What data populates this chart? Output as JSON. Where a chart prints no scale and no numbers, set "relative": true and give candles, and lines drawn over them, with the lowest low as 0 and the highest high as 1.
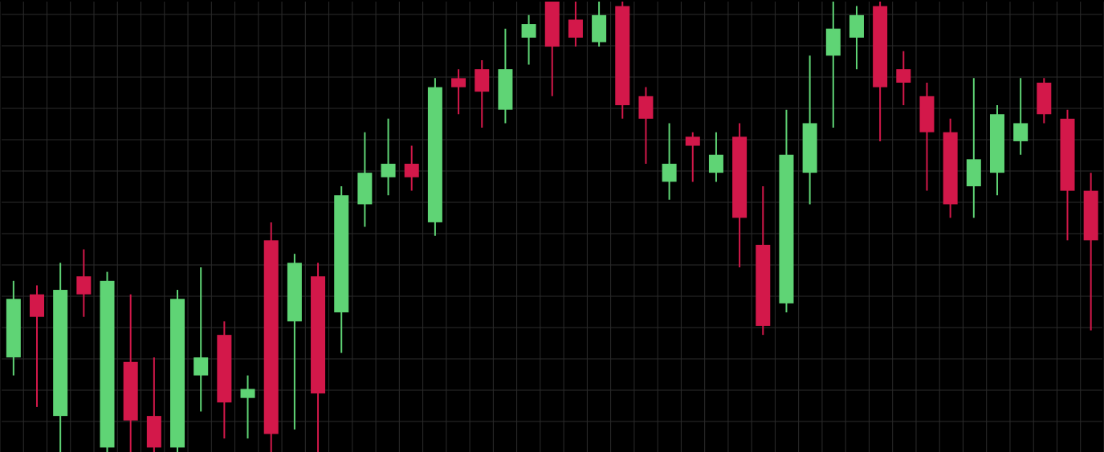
{
  "chart_data": {
    "type": "candlestick",
    "relative": true,
    "grid": true,
    "categories": [
      null,
      null,
      null,
      null,
      null,
      null,
      null,
      null,
      null,
      null,
      null,
      null,
      null,
      null,
      null,
      null,
      null,
      null,
      null,
      null,
      null,
      null,
      null,
      null,
      null,
      null,
      null,
      null,
      null,
      null,
      null,
      null,
      null,
      null,
      null,
      null,
      null,
      null,
      null,
      null,
      null,
      null,
      null,
      null,
      null,
      null,
      null
    ],
    "ohlc": [
      [
        0.21,
        0.38,
        0.17,
        0.34
      ],
      [
        0.35,
        0.37,
        0.1,
        0.3
      ],
      [
        0.08,
        0.42,
        0,
        0.36
      ],
      [
        0.39,
        0.45,
        0.3,
        0.35
      ],
      [
        0.01,
        0.4,
        0,
        0.38
      ],
      [
        0.2,
        0.35,
        0,
        0.07
      ],
      [
        0.08,
        0.21,
        0,
        0.01
      ],
      [
        0.01,
        0.36,
        0,
        0.34
      ],
      [
        0.17,
        0.41,
        0.09,
        0.21
      ],
      [
        0.26,
        0.29,
        0.03,
        0.11
      ],
      [
        0.12,
        0.17,
        0.03,
        0.14
      ],
      [
        0.47,
        0.51,
        0,
        0.04
      ],
      [
        0.29,
        0.44,
        0.05,
        0.42
      ],
      [
        0.39,
        0.42,
        0,
        0.13
      ],
      [
        0.31,
        0.59,
        0.22,
        0.57
      ],
      [
        0.55,
        0.71,
        0.5,
        0.62
      ],
      [
        0.61,
        0.74,
        0.57,
        0.64
      ],
      [
        0.64,
        0.68,
        0.58,
        0.61
      ],
      [
        0.51,
        0.83,
        0.48,
        0.81
      ],
      [
        0.83,
        0.85,
        0.75,
        0.81
      ],
      [
        0.85,
        0.87,
        0.72,
        0.8
      ],
      [
        0.76,
        0.94,
        0.73,
        0.85
      ],
      [
        0.92,
        0.97,
        0.86,
        0.95
      ],
      [
        1,
        1,
        0.79,
        0.9
      ],
      [
        0.96,
        1,
        0.9,
        0.92
      ],
      [
        0.91,
        1,
        0.9,
        0.97
      ],
      [
        0.99,
        1,
        0.74,
        0.77
      ],
      [
        0.79,
        0.81,
        0.64,
        0.74
      ],
      [
        0.6,
        0.73,
        0.56,
        0.64
      ],
      [
        0.7,
        0.71,
        0.6,
        0.68
      ],
      [
        0.62,
        0.71,
        0.6,
        0.66
      ],
      [
        0.7,
        0.73,
        0.41,
        0.52
      ],
      [
        0.46,
        0.59,
        0.26,
        0.28
      ],
      [
        0.33,
        0.76,
        0.31,
        0.66
      ],
      [
        0.62,
        0.88,
        0.55,
        0.73
      ],
      [
        0.88,
        1,
        0.72,
        0.94
      ],
      [
        0.92,
        0.99,
        0.85,
        0.97
      ],
      [
        0.99,
        1,
        0.69,
        0.81
      ],
      [
        0.85,
        0.89,
        0.77,
        0.82
      ],
      [
        0.79,
        0.82,
        0.58,
        0.71
      ],
      [
        0.71,
        0.74,
        0.52,
        0.55
      ],
      [
        0.59,
        0.83,
        0.52,
        0.65
      ],
      [
        0.62,
        0.77,
        0.57,
        0.75
      ],
      [
        0.69,
        0.83,
        0.66,
        0.73
      ],
      [
        0.82,
        0.83,
        0.73,
        0.75
      ],
      [
        0.74,
        0.76,
        0.47,
        0.58
      ],
      [
        0.58,
        0.62,
        0.27,
        0.47
      ]
    ],
    "colors": [
      "#5fd475",
      "#d3184a",
      "#5fd475",
      "#d3184a",
      "#5fd475",
      "#d3184a",
      "#d3184a",
      "#5fd475",
      "#5fd475",
      "#d3184a",
      "#5fd475",
      "#d3184a",
      "#5fd475",
      "#d3184a",
      "#5fd475",
      "#5fd475",
      "#5fd475",
      "#d3184a",
      "#5fd475",
      "#d3184a",
      "#d3184a",
      "#5fd475",
      "#5fd475",
      "#d3184a",
      "#d3184a",
      "#5fd475",
      "#d3184a",
      "#d3184a",
      "#5fd475",
      "#d3184a",
      "#5fd475",
      "#d3184a",
      "#d3184a",
      "#5fd475",
      "#5fd475",
      "#5fd475",
      "#5fd475",
      "#d3184a",
      "#d3184a",
      "#d3184a",
      "#d3184a",
      "#5fd475",
      "#5fd475",
      "#5fd475",
      "#d3184a",
      "#d3184a",
      "#d3184a"
    ]
  }
}
